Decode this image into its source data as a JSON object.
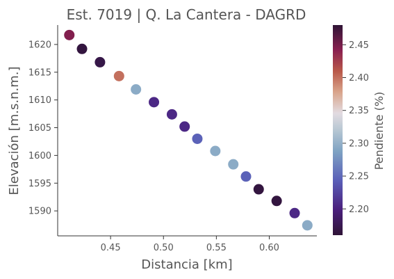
{
  "chart_data": {
    "type": "scatter",
    "title": "Est. 7019 | Q. La Cantera - DAGRD",
    "xlabel": "Distancia [km]",
    "ylabel": "Elevación [m.s.n.m.]",
    "xlim": [
      0.4,
      0.645
    ],
    "ylim": [
      1585.5,
      1623.5
    ],
    "xticks": [
      "0.45",
      "0.50",
      "0.55",
      "0.60"
    ],
    "yticks": [
      "1590",
      "1595",
      "1600",
      "1605",
      "1610",
      "1615",
      "1620"
    ],
    "grid": false,
    "colormap": "twilight_shifted",
    "colorbar": {
      "label": "Pendiente (%)",
      "range": [
        2.16,
        2.48
      ],
      "ticks": [
        "2.20",
        "2.25",
        "2.30",
        "2.35",
        "2.40",
        "2.45"
      ]
    },
    "points": [
      {
        "x": 0.411,
        "y": 1621.7,
        "c": 2.445
      },
      {
        "x": 0.423,
        "y": 1619.2,
        "c": 2.165
      },
      {
        "x": 0.44,
        "y": 1616.8,
        "c": 2.17
      },
      {
        "x": 0.458,
        "y": 1614.3,
        "c": 2.4
      },
      {
        "x": 0.474,
        "y": 1611.9,
        "c": 2.295
      },
      {
        "x": 0.491,
        "y": 1609.6,
        "c": 2.205
      },
      {
        "x": 0.508,
        "y": 1607.4,
        "c": 2.205
      },
      {
        "x": 0.52,
        "y": 1605.2,
        "c": 2.205
      },
      {
        "x": 0.532,
        "y": 1603.0,
        "c": 2.245
      },
      {
        "x": 0.549,
        "y": 1600.8,
        "c": 2.295
      },
      {
        "x": 0.566,
        "y": 1598.4,
        "c": 2.295
      },
      {
        "x": 0.578,
        "y": 1596.2,
        "c": 2.245
      },
      {
        "x": 0.59,
        "y": 1593.9,
        "c": 2.165
      },
      {
        "x": 0.607,
        "y": 1591.8,
        "c": 2.165
      },
      {
        "x": 0.624,
        "y": 1589.6,
        "c": 2.205
      },
      {
        "x": 0.636,
        "y": 1587.4,
        "c": 2.295
      }
    ]
  }
}
